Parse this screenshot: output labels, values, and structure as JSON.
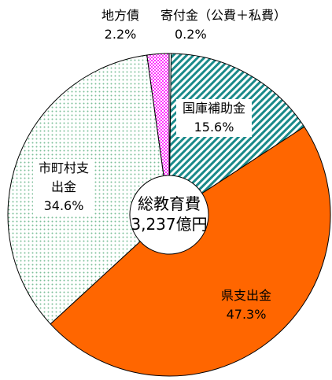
{
  "chart_data": {
    "type": "donut",
    "center_title": "総教育費",
    "center_total": "3,237億円",
    "categories": [
      "寄付金（公費＋私費）",
      "国庫補助金",
      "県支出金",
      "市町村支出金",
      "地方債"
    ],
    "values": [
      0.2,
      15.6,
      47.3,
      34.6,
      2.2
    ],
    "value_labels": [
      "0.2%",
      "15.6%",
      "47.3%",
      "34.6%",
      "2.2%"
    ],
    "colors": [
      "#ffffff",
      "#1a8a8a",
      "#ff6600",
      "#7cbf9a",
      "#ff33ff"
    ]
  }
}
